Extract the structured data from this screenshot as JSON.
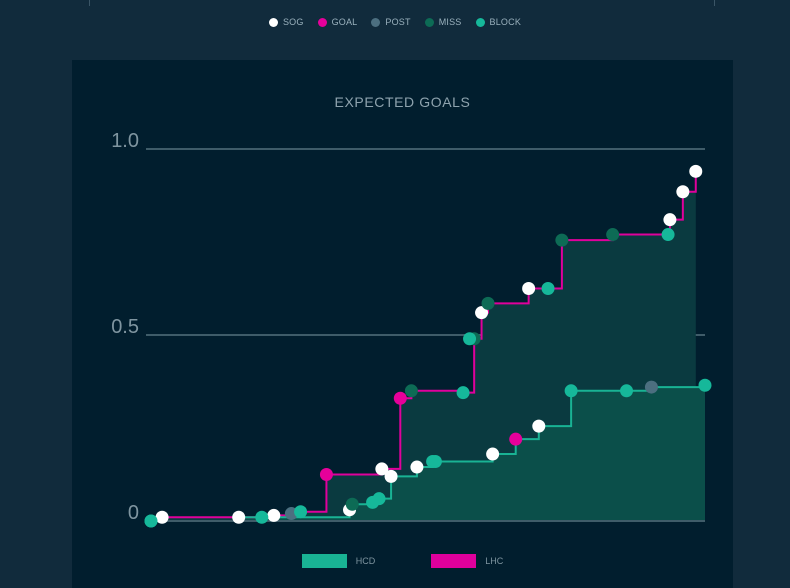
{
  "colors": {
    "sog": "#ffffff",
    "goal": "#e6009a",
    "post": "#4c6f80",
    "miss": "#0d6b55",
    "block": "#16b89a",
    "hcd": "#19b394",
    "lhc": "#e0009c"
  },
  "chart_data": {
    "type": "line",
    "title": "EXPECTED GOALS",
    "ylim": [
      0,
      1.0
    ],
    "yticks": [
      {
        "value": 0,
        "label": "0"
      },
      {
        "value": 0.5,
        "label": "0.5"
      },
      {
        "value": 1.0,
        "label": "1.0"
      }
    ],
    "xlim": [
      0,
      60
    ],
    "shot_legend": [
      {
        "key": "sog",
        "label": "SOG"
      },
      {
        "key": "goal",
        "label": "GOAL"
      },
      {
        "key": "post",
        "label": "POST"
      },
      {
        "key": "miss",
        "label": "MISS"
      },
      {
        "key": "block",
        "label": "BLOCK"
      }
    ],
    "series": [
      {
        "name": "LHC",
        "color_key": "lhc",
        "fill": "#0a3a40",
        "points": [
          {
            "t": 0.0,
            "xg": 0.0,
            "type": "block"
          },
          {
            "t": 1.2,
            "xg": 0.01,
            "type": "sog"
          },
          {
            "t": 13.3,
            "xg": 0.015,
            "type": "sog"
          },
          {
            "t": 15.2,
            "xg": 0.02,
            "type": "post"
          },
          {
            "t": 16.2,
            "xg": 0.025,
            "type": "block"
          },
          {
            "t": 19.0,
            "xg": 0.125,
            "type": "goal"
          },
          {
            "t": 25.0,
            "xg": 0.14,
            "type": "sog"
          },
          {
            "t": 27.0,
            "xg": 0.33,
            "type": "goal"
          },
          {
            "t": 28.2,
            "xg": 0.35,
            "type": "miss"
          },
          {
            "t": 33.8,
            "xg": 0.345,
            "type": "block"
          },
          {
            "t": 35.0,
            "xg": 0.49,
            "type": "miss"
          },
          {
            "t": 34.5,
            "xg": 0.49,
            "type": "block"
          },
          {
            "t": 35.8,
            "xg": 0.56,
            "type": "sog"
          },
          {
            "t": 36.5,
            "xg": 0.585,
            "type": "miss"
          },
          {
            "t": 40.9,
            "xg": 0.625,
            "type": "sog"
          },
          {
            "t": 43.0,
            "xg": 0.625,
            "type": "block"
          },
          {
            "t": 44.5,
            "xg": 0.755,
            "type": "miss"
          },
          {
            "t": 50.0,
            "xg": 0.77,
            "type": "miss"
          },
          {
            "t": 56.0,
            "xg": 0.77,
            "type": "block"
          },
          {
            "t": 56.2,
            "xg": 0.81,
            "type": "sog"
          },
          {
            "t": 57.6,
            "xg": 0.885,
            "type": "sog"
          },
          {
            "t": 59.0,
            "xg": 0.94,
            "type": "sog"
          }
        ]
      },
      {
        "name": "HCD",
        "color_key": "hcd",
        "fill": "#0b4f4a",
        "points": [
          {
            "t": 0.0,
            "xg": 0.0,
            "type": "block"
          },
          {
            "t": 9.5,
            "xg": 0.01,
            "type": "sog"
          },
          {
            "t": 12.0,
            "xg": 0.01,
            "type": "block"
          },
          {
            "t": 21.5,
            "xg": 0.03,
            "type": "sog"
          },
          {
            "t": 21.8,
            "xg": 0.045,
            "type": "miss"
          },
          {
            "t": 24.0,
            "xg": 0.05,
            "type": "block"
          },
          {
            "t": 24.7,
            "xg": 0.06,
            "type": "block"
          },
          {
            "t": 26.0,
            "xg": 0.12,
            "type": "sog"
          },
          {
            "t": 28.8,
            "xg": 0.145,
            "type": "sog"
          },
          {
            "t": 30.5,
            "xg": 0.16,
            "type": "block"
          },
          {
            "t": 30.8,
            "xg": 0.16,
            "type": "block"
          },
          {
            "t": 37.0,
            "xg": 0.18,
            "type": "sog"
          },
          {
            "t": 39.5,
            "xg": 0.22,
            "type": "goal"
          },
          {
            "t": 42.0,
            "xg": 0.255,
            "type": "sog"
          },
          {
            "t": 45.5,
            "xg": 0.35,
            "type": "block"
          },
          {
            "t": 51.5,
            "xg": 0.35,
            "type": "block"
          },
          {
            "t": 54.2,
            "xg": 0.36,
            "type": "post"
          },
          {
            "t": 60.0,
            "xg": 0.365,
            "type": "block"
          }
        ]
      }
    ]
  },
  "bottom_legend": [
    {
      "label": "HCD",
      "color_key": "hcd"
    },
    {
      "label": "LHC",
      "color_key": "lhc"
    }
  ]
}
